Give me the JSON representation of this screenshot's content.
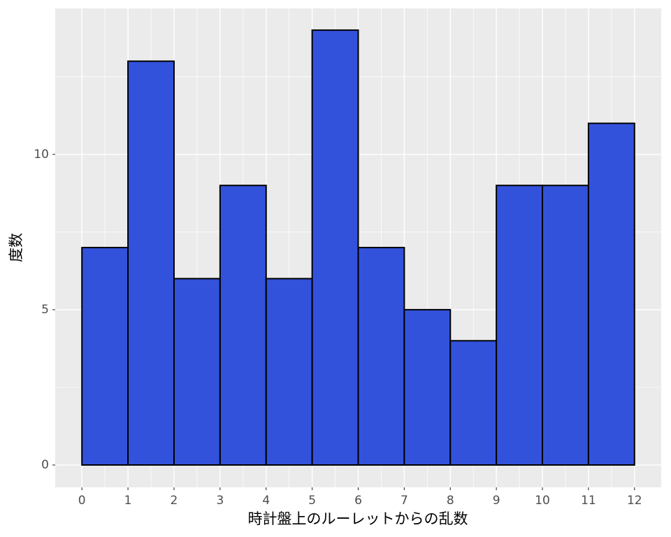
{
  "chart_data": {
    "type": "histogram",
    "x_label": "時計盤上のルーレットからの乱数",
    "y_label": "度数",
    "bins": [
      0,
      1,
      2,
      3,
      4,
      5,
      6,
      7,
      8,
      9,
      10,
      11,
      12
    ],
    "values": [
      7,
      13,
      6,
      9,
      6,
      14,
      7,
      5,
      4,
      9,
      9,
      11
    ],
    "color": "#3352db",
    "edge_color": "#000000",
    "xlim": [
      -0.58,
      12.58
    ],
    "xticks": [
      0,
      1,
      2,
      3,
      4,
      5,
      6,
      7,
      8,
      9,
      10,
      11,
      12
    ],
    "ylim": [
      -0.72,
      14.7
    ],
    "yticks": [
      0,
      5,
      10
    ],
    "grid": true
  }
}
